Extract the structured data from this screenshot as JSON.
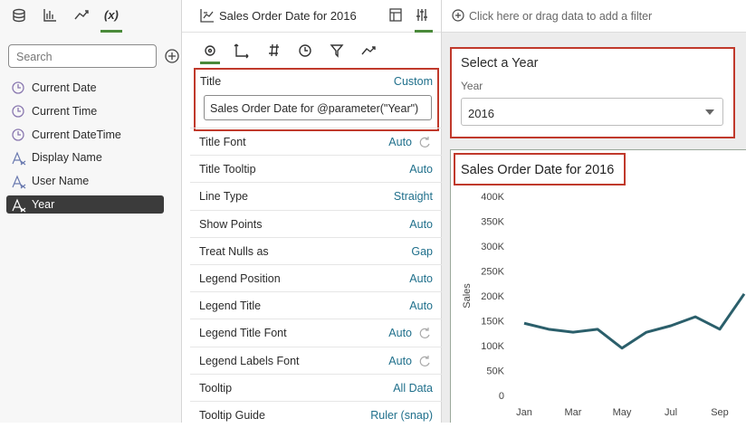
{
  "left_panel": {
    "search_placeholder": "Search",
    "items": [
      "Current Date",
      "Current Time",
      "Current DateTime",
      "Display Name",
      "User Name",
      "Year"
    ]
  },
  "middle_panel": {
    "header_title": "Sales Order Date for 2016",
    "title_row": {
      "label": "Title",
      "value": "Custom",
      "input": "Sales Order Date for @parameter(\"Year\")"
    },
    "properties": [
      {
        "label": "Title Font",
        "value": "Auto"
      },
      {
        "label": "Title Tooltip",
        "value": "Auto"
      },
      {
        "label": "Line Type",
        "value": "Straight"
      },
      {
        "label": "Show Points",
        "value": "Auto"
      },
      {
        "label": "Treat Nulls as",
        "value": "Gap"
      },
      {
        "label": "Legend Position",
        "value": "Auto"
      },
      {
        "label": "Legend Title",
        "value": "Auto"
      },
      {
        "label": "Legend Title Font",
        "value": "Auto"
      },
      {
        "label": "Legend Labels Font",
        "value": "Auto"
      },
      {
        "label": "Tooltip",
        "value": "All Data"
      },
      {
        "label": "Tooltip Guide",
        "value": "Ruler (snap)"
      }
    ]
  },
  "filter_bar": {
    "placeholder": "Click here or drag data to add a filter"
  },
  "year_selector": {
    "title": "Select a Year",
    "label": "Year",
    "value": "2016"
  },
  "chart_data": {
    "type": "line",
    "title": "Sales Order Date for 2016",
    "y_label": "Sales",
    "categories": [
      "Jan",
      null,
      "Mar",
      null,
      "May",
      null,
      "Jul",
      null,
      "Sep",
      null
    ],
    "values": [
      145000,
      133000,
      127000,
      133000,
      95000,
      127000,
      140000,
      158000,
      133000,
      204000
    ],
    "color": "#2b5f6b",
    "ylim": [
      0,
      400000
    ],
    "yticks": [
      0,
      {
        "value": 50000,
        "label": "50K"
      },
      {
        "value": 100000,
        "label": "100K"
      },
      {
        "value": 150000,
        "label": "150K"
      },
      {
        "value": 200000,
        "label": "200K"
      },
      {
        "value": 250000,
        "label": "250K"
      },
      {
        "value": 300000,
        "label": "300K"
      },
      {
        "value": 350000,
        "label": "350K"
      },
      {
        "value": 400000,
        "label": "400K"
      }
    ]
  }
}
